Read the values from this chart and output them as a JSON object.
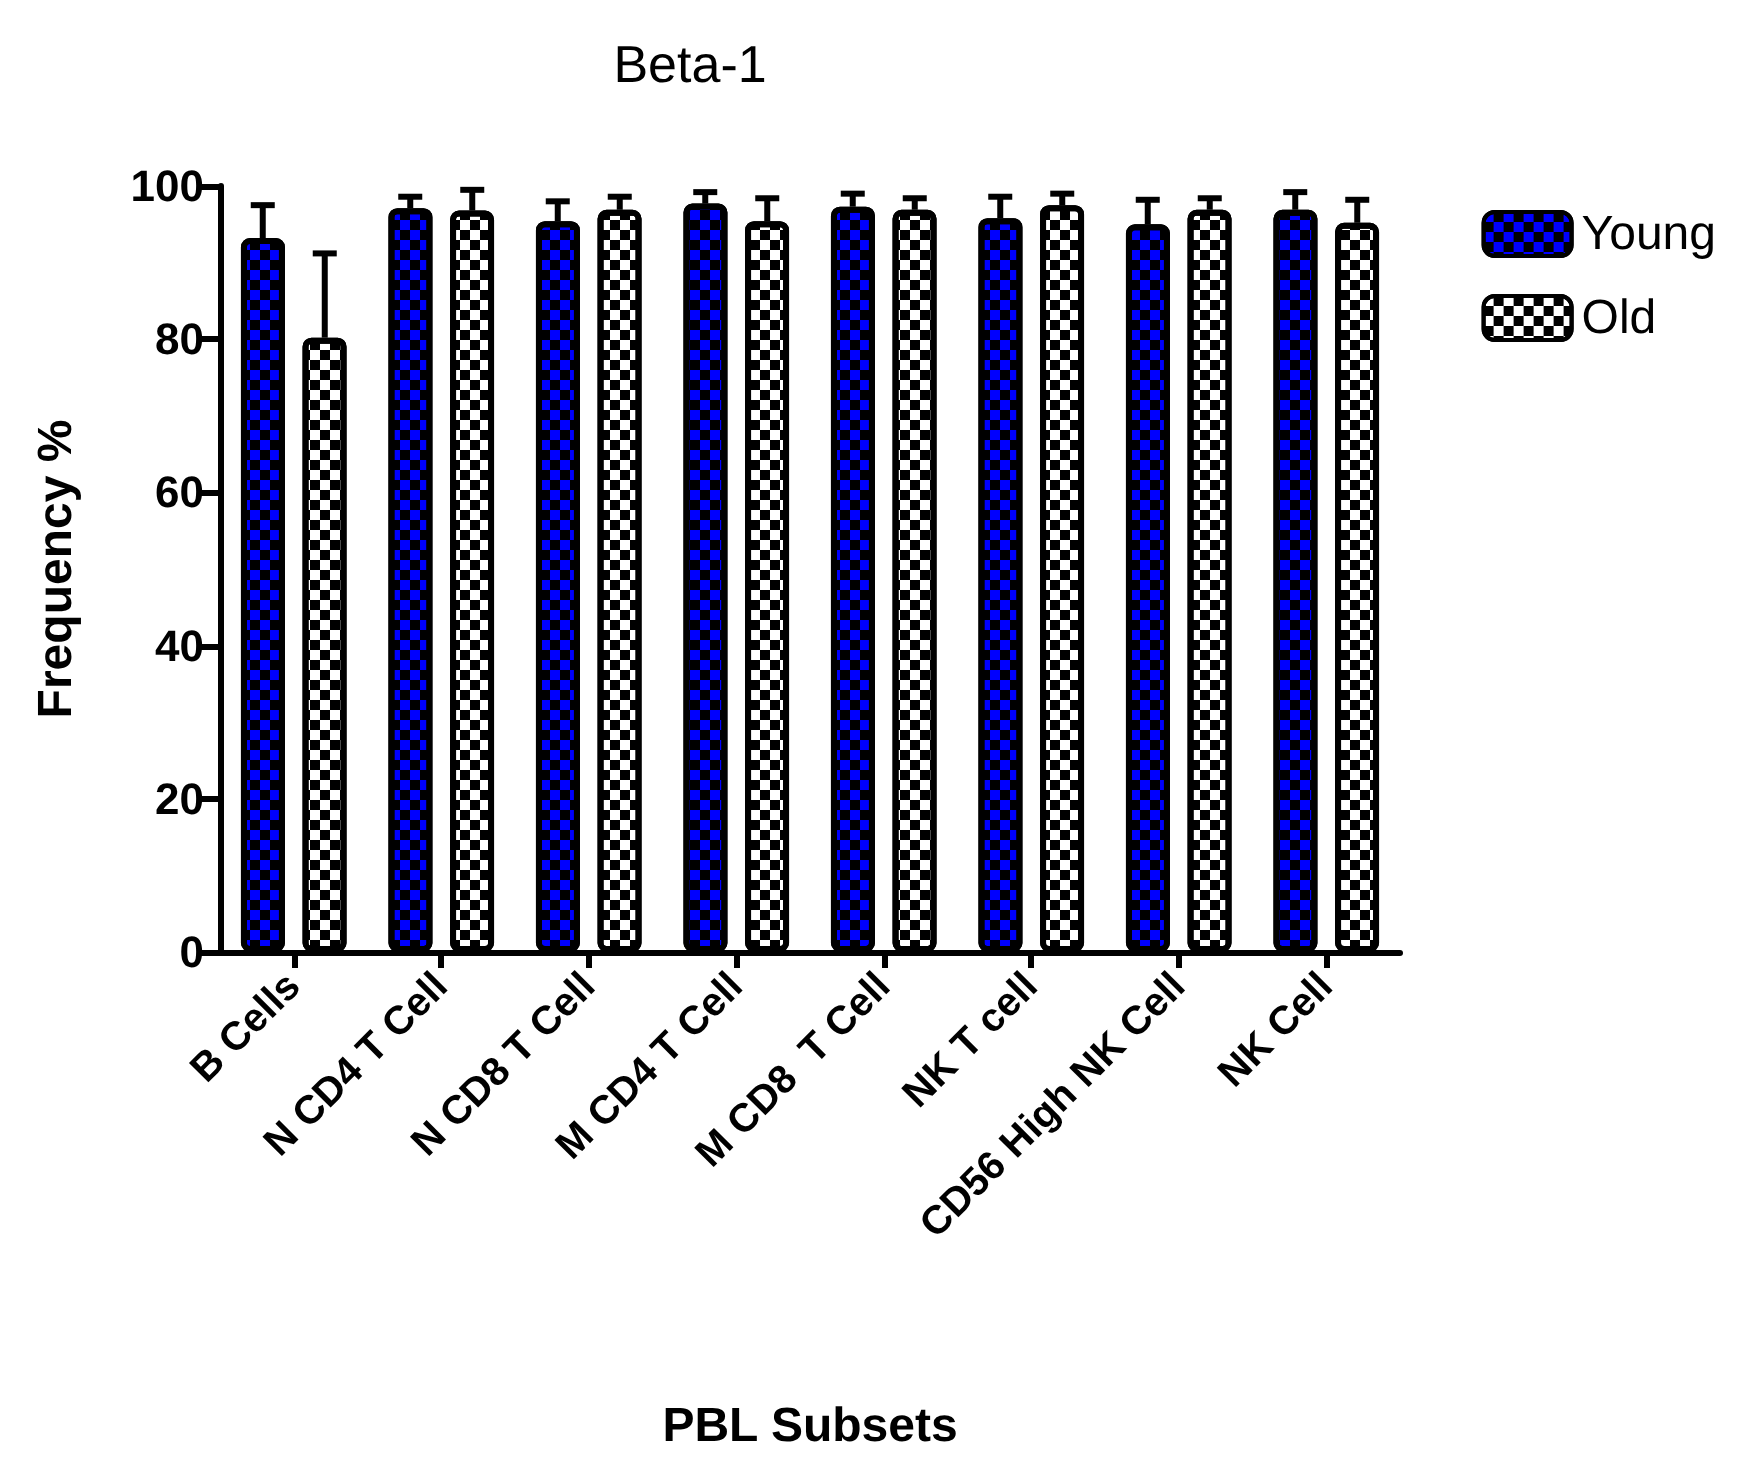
{
  "chart_data": {
    "type": "bar",
    "title": "Beta-1",
    "xlabel": "PBL Subsets",
    "ylabel": "Frequency %",
    "categories": [
      "B Cells",
      "N CD4 T Cell",
      "N CD8 T Cell",
      "M CD4 T Cell",
      "M CD8  T Cell",
      "NK T cell",
      "CD56 High NK Cell",
      "NK Cell"
    ],
    "series": [
      {
        "name": "Young",
        "color": "#0000ff",
        "values": [
          93.2,
          97.1,
          95.4,
          97.7,
          97.3,
          95.8,
          95.0,
          96.9
        ],
        "errors": [
          4.3,
          1.5,
          2.6,
          1.5,
          1.7,
          2.8,
          3.2,
          2.3
        ]
      },
      {
        "name": "Old",
        "color": "#ffffff",
        "values": [
          80.2,
          96.8,
          96.9,
          95.4,
          96.9,
          97.5,
          96.9,
          95.2
        ],
        "errors": [
          11,
          2.7,
          1.7,
          3,
          1.5,
          1.5,
          1.5,
          3
        ]
      }
    ],
    "ylim": [
      0,
      100
    ],
    "yticks": [
      0,
      20,
      40,
      60,
      80,
      100
    ],
    "grid": false,
    "legend": "top right"
  }
}
